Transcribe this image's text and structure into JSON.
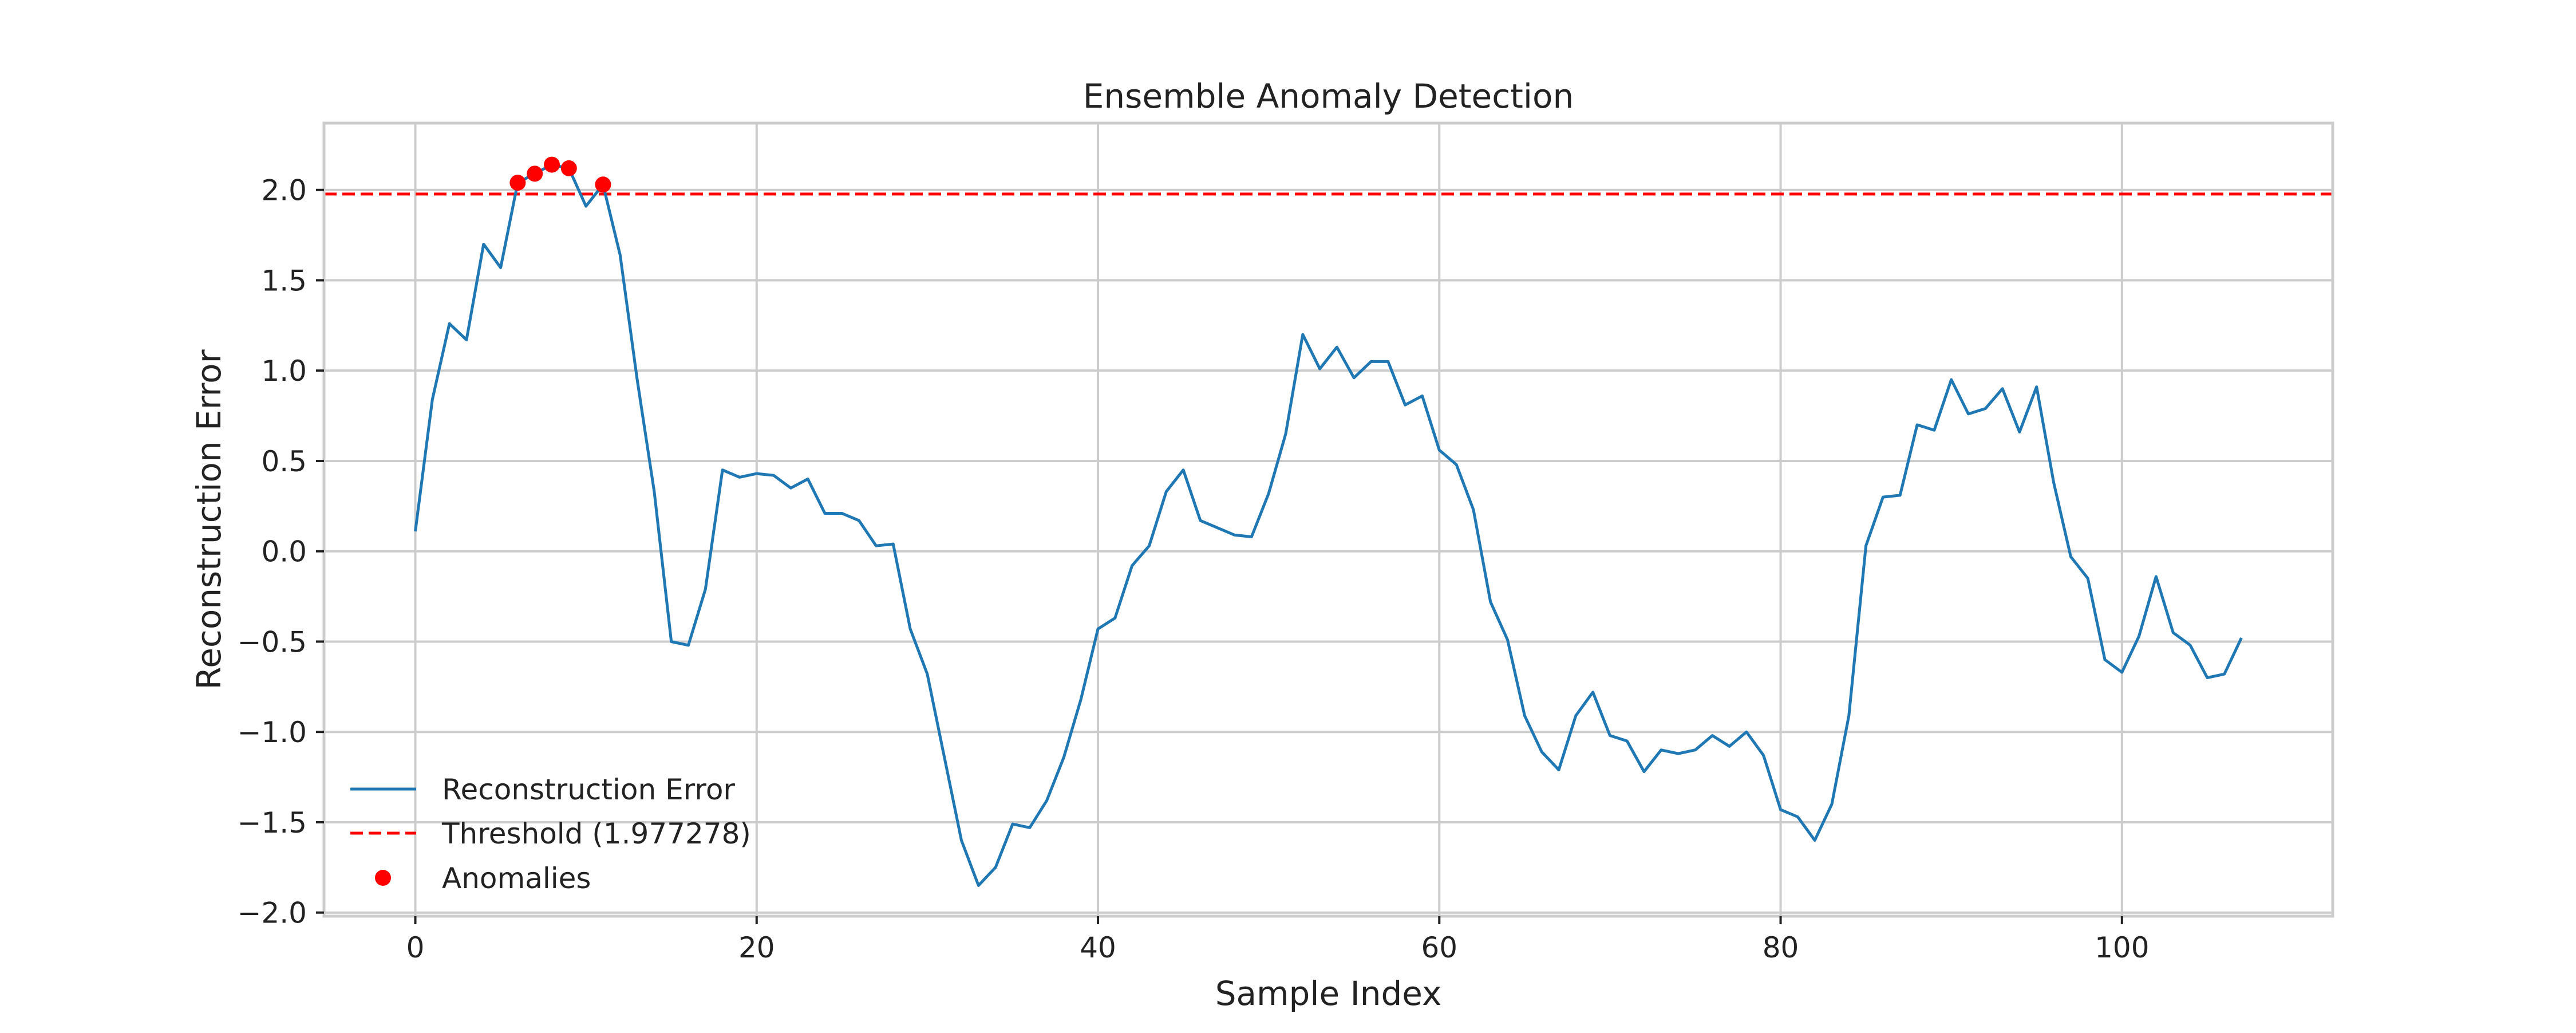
{
  "chart_data": {
    "type": "line",
    "title": "Ensemble Anomaly Detection",
    "xlabel": "Sample Index",
    "ylabel": "Reconstruction Error",
    "xlim": [
      -5.35,
      112.35
    ],
    "ylim": [
      -2.02,
      2.37
    ],
    "xticks": [
      0,
      20,
      40,
      60,
      80,
      100
    ],
    "xtick_labels": [
      "0",
      "20",
      "40",
      "60",
      "80",
      "100"
    ],
    "yticks": [
      -2.0,
      -1.5,
      -1.0,
      -0.5,
      0.0,
      0.5,
      1.0,
      1.5,
      2.0
    ],
    "ytick_labels": [
      "−2.0",
      "−1.5",
      "−1.0",
      "−0.5",
      "0.0",
      "0.5",
      "1.0",
      "1.5",
      "2.0"
    ],
    "grid": true,
    "legend_position": "lower-left",
    "series": [
      {
        "name": "Reconstruction Error",
        "kind": "line",
        "color": "#1f77b4",
        "x": [
          0,
          1,
          2,
          3,
          4,
          5,
          6,
          7,
          8,
          9,
          10,
          11,
          12,
          13,
          14,
          15,
          16,
          17,
          18,
          19,
          20,
          21,
          22,
          23,
          24,
          25,
          26,
          27,
          28,
          29,
          30,
          31,
          32,
          33,
          34,
          35,
          36,
          37,
          38,
          39,
          40,
          41,
          42,
          43,
          44,
          45,
          46,
          47,
          48,
          49,
          50,
          51,
          52,
          53,
          54,
          55,
          56,
          57,
          58,
          59,
          60,
          61,
          62,
          63,
          64,
          65,
          66,
          67,
          68,
          69,
          70,
          71,
          72,
          73,
          74,
          75,
          76,
          77,
          78,
          79,
          80,
          81,
          82,
          83,
          84,
          85,
          86,
          87,
          88,
          89,
          90,
          91,
          92,
          93,
          94,
          95,
          96,
          97,
          98,
          99,
          100,
          101,
          102,
          103,
          104,
          105,
          106,
          107
        ],
        "values": [
          0.11,
          0.84,
          1.26,
          1.17,
          1.7,
          1.57,
          2.04,
          2.09,
          2.14,
          2.12,
          1.91,
          2.03,
          1.64,
          0.95,
          0.33,
          -0.5,
          -0.52,
          -0.21,
          0.45,
          0.41,
          0.43,
          0.42,
          0.35,
          0.4,
          0.21,
          0.21,
          0.17,
          0.03,
          0.04,
          -0.43,
          -0.68,
          -1.14,
          -1.6,
          -1.85,
          -1.75,
          -1.51,
          -1.53,
          -1.38,
          -1.14,
          -0.82,
          -0.43,
          -0.37,
          -0.08,
          0.03,
          0.33,
          0.45,
          0.17,
          0.13,
          0.09,
          0.08,
          0.32,
          0.65,
          1.2,
          1.01,
          1.13,
          0.96,
          1.05,
          1.05,
          0.81,
          0.86,
          0.56,
          0.48,
          0.23,
          -0.28,
          -0.49,
          -0.91,
          -1.11,
          -1.21,
          -0.91,
          -0.78,
          -1.02,
          -1.05,
          -1.22,
          -1.1,
          -1.12,
          -1.1,
          -1.02,
          -1.08,
          -1.0,
          -1.13,
          -1.43,
          -1.47,
          -1.6,
          -1.4,
          -0.91,
          0.03,
          0.3,
          0.31,
          0.7,
          0.67,
          0.95,
          0.76,
          0.79,
          0.9,
          0.66,
          0.91,
          0.38,
          -0.03,
          -0.15,
          -0.6,
          -0.67,
          -0.47,
          -0.14,
          -0.45,
          -0.52,
          -0.7,
          -0.68,
          -0.48
        ]
      },
      {
        "name": "Threshold (1.977278)",
        "kind": "hline",
        "color": "#ff0000",
        "value": 1.977278
      },
      {
        "name": "Anomalies",
        "kind": "scatter",
        "color": "#ff0000",
        "x": [
          6,
          7,
          8,
          9,
          11
        ],
        "values": [
          2.04,
          2.09,
          2.14,
          2.12,
          2.03
        ]
      }
    ]
  }
}
